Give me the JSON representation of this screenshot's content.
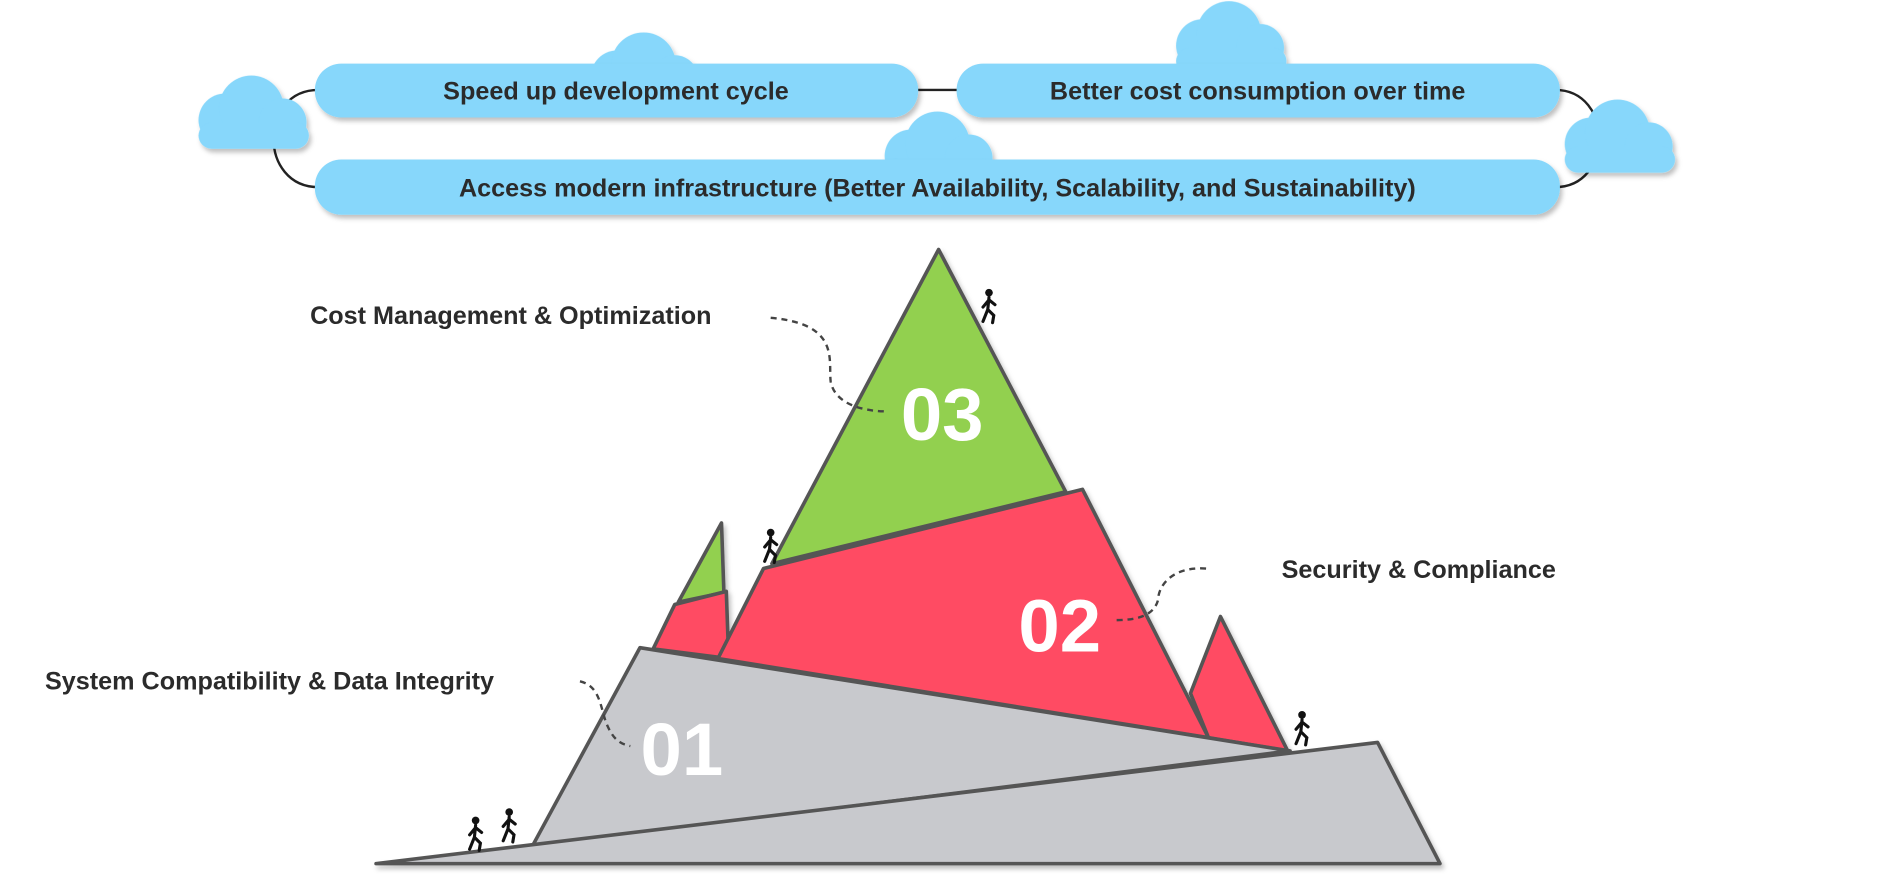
{
  "goals": {
    "speed": "Speed up development cycle",
    "cost": "Better cost consumption over time",
    "infra": "Access modern infrastructure (Better Availability, Scalability, and Sustainability)"
  },
  "stages": [
    {
      "number": "01",
      "label": "System Compatibility & Data Integrity"
    },
    {
      "number": "02",
      "label": "Security & Compliance"
    },
    {
      "number": "03",
      "label": "Cost Management & Optimization"
    }
  ],
  "colors": {
    "pill": "#87d7fb",
    "stage1": "#c8c9cd",
    "stage2": "#ff4b63",
    "stage3": "#92d050"
  }
}
